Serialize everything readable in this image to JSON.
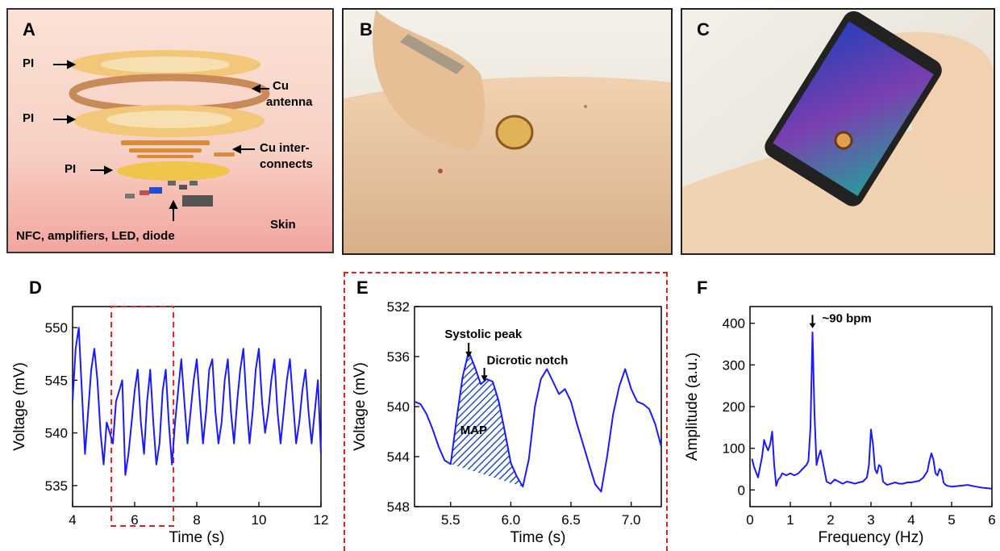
{
  "panels": {
    "a": {
      "letter": "A",
      "labels": {
        "pi1": "PI",
        "pi2": "PI",
        "pi3": "PI",
        "cu_antenna_1": "Cu",
        "cu_antenna_2": "antenna",
        "cu_inter_1": "Cu inter-",
        "cu_inter_2": "connects",
        "components": "NFC, amplifiers, LED, diode",
        "skin": "Skin"
      }
    },
    "b": {
      "letter": "B"
    },
    "c": {
      "letter": "C"
    },
    "d": {
      "letter": "D"
    },
    "e": {
      "letter": "E",
      "annotations": {
        "systolic": "Systolic peak",
        "dicrotic": "Dicrotic notch",
        "map": "MAP"
      }
    },
    "f": {
      "letter": "F",
      "annotations": {
        "peak": "~90 bpm"
      }
    }
  },
  "chart_data": [
    {
      "id": "D",
      "type": "line",
      "xlabel": "Time (s)",
      "ylabel": "Voltage (mV)",
      "xlim": [
        4,
        12
      ],
      "ylim": [
        533,
        552
      ],
      "xticks": [
        4,
        6,
        8,
        10,
        12
      ],
      "yticks": [
        535,
        540,
        545,
        550
      ],
      "color": "#1a1aff",
      "highlight_region": [
        5.25,
        7.25
      ],
      "x": [
        4.0,
        4.1,
        4.2,
        4.3,
        4.4,
        4.5,
        4.6,
        4.7,
        4.8,
        4.9,
        5.0,
        5.1,
        5.2,
        5.3,
        5.4,
        5.5,
        5.6,
        5.7,
        5.8,
        5.9,
        6.0,
        6.1,
        6.2,
        6.3,
        6.4,
        6.5,
        6.6,
        6.7,
        6.8,
        6.9,
        7.0,
        7.1,
        7.2,
        7.3,
        7.4,
        7.5,
        7.6,
        7.7,
        7.8,
        7.9,
        8.0,
        8.1,
        8.2,
        8.3,
        8.4,
        8.5,
        8.6,
        8.7,
        8.8,
        8.9,
        9.0,
        9.1,
        9.2,
        9.3,
        9.4,
        9.5,
        9.6,
        9.7,
        9.8,
        9.9,
        10.0,
        10.1,
        10.2,
        10.3,
        10.4,
        10.5,
        10.6,
        10.7,
        10.8,
        10.9,
        11.0,
        11.1,
        11.2,
        11.3,
        11.4,
        11.5,
        11.6,
        11.7,
        11.8,
        11.9,
        12.0
      ],
      "y": [
        543,
        548,
        550,
        544,
        538,
        542,
        546,
        548,
        545,
        540,
        537,
        541,
        540,
        539,
        543,
        544,
        545,
        536,
        538,
        541,
        544,
        546,
        541,
        538,
        543,
        546,
        541,
        537,
        539,
        544,
        546,
        541,
        537,
        541,
        544,
        547,
        543,
        539,
        542,
        545,
        547,
        543,
        539,
        542,
        546,
        547,
        542,
        539,
        541,
        545,
        547,
        542,
        539,
        543,
        546,
        548,
        543,
        539,
        542,
        546,
        548,
        543,
        540,
        542,
        545,
        547,
        542,
        539,
        542,
        545,
        547,
        543,
        539,
        541,
        544,
        546,
        542,
        539,
        542,
        545,
        538
      ]
    },
    {
      "id": "E",
      "type": "line",
      "xlabel": "Time (s)",
      "ylabel": "Voltage (mV)",
      "xlim": [
        5.2,
        7.25
      ],
      "ylim": [
        548,
        532
      ],
      "xticks": [
        5.5,
        6.0,
        6.5,
        7.0
      ],
      "yticks": [
        532,
        536,
        540,
        544,
        548
      ],
      "color": "#1a1aff",
      "map_region": [
        5.5,
        6.12
      ],
      "x": [
        5.2,
        5.25,
        5.3,
        5.35,
        5.4,
        5.45,
        5.5,
        5.55,
        5.6,
        5.65,
        5.7,
        5.75,
        5.8,
        5.85,
        5.9,
        5.95,
        6.0,
        6.05,
        6.1,
        6.15,
        6.2,
        6.25,
        6.3,
        6.35,
        6.4,
        6.45,
        6.5,
        6.55,
        6.6,
        6.65,
        6.7,
        6.75,
        6.8,
        6.85,
        6.9,
        6.95,
        7.0,
        7.05,
        7.1,
        7.15,
        7.2,
        7.25
      ],
      "y": [
        539.6,
        539.8,
        540.6,
        541.8,
        543.2,
        544.3,
        544.6,
        541.0,
        537.6,
        535.6,
        536.8,
        538.2,
        537.8,
        538.0,
        539.6,
        542.0,
        544.5,
        545.6,
        546.4,
        544.2,
        540.0,
        537.8,
        537.0,
        538.0,
        539.0,
        538.6,
        539.6,
        541.4,
        543.0,
        544.6,
        546.2,
        546.8,
        544.0,
        540.6,
        538.4,
        537.0,
        538.6,
        539.6,
        539.8,
        540.2,
        541.4,
        543.2
      ]
    },
    {
      "id": "F",
      "type": "line",
      "xlabel": "Frequency (Hz)",
      "ylabel": "Amplitude (a.u.)",
      "xlim": [
        0,
        6
      ],
      "ylim": [
        -40,
        440
      ],
      "xticks": [
        0,
        1,
        2,
        3,
        4,
        5,
        6
      ],
      "yticks": [
        0,
        100,
        200,
        300,
        400
      ],
      "color": "#1a1aff",
      "x": [
        0.05,
        0.1,
        0.2,
        0.3,
        0.35,
        0.4,
        0.45,
        0.5,
        0.55,
        0.6,
        0.65,
        0.7,
        0.75,
        0.8,
        0.9,
        1.0,
        1.1,
        1.2,
        1.3,
        1.4,
        1.45,
        1.5,
        1.55,
        1.6,
        1.65,
        1.7,
        1.75,
        1.8,
        1.85,
        1.9,
        2.0,
        2.1,
        2.2,
        2.3,
        2.4,
        2.5,
        2.6,
        2.7,
        2.8,
        2.9,
        2.95,
        3.0,
        3.05,
        3.1,
        3.15,
        3.2,
        3.25,
        3.3,
        3.4,
        3.5,
        3.6,
        3.7,
        3.8,
        3.9,
        4.0,
        4.1,
        4.2,
        4.3,
        4.4,
        4.45,
        4.5,
        4.55,
        4.6,
        4.65,
        4.7,
        4.75,
        4.8,
        4.85,
        4.9,
        5.0,
        5.2,
        5.4,
        5.6,
        5.8,
        6.0
      ],
      "y": [
        75,
        55,
        30,
        80,
        120,
        105,
        95,
        110,
        140,
        60,
        10,
        25,
        30,
        40,
        35,
        40,
        35,
        40,
        50,
        60,
        70,
        150,
        378,
        180,
        60,
        80,
        95,
        70,
        45,
        20,
        15,
        25,
        20,
        15,
        20,
        18,
        15,
        18,
        20,
        30,
        60,
        145,
        110,
        50,
        40,
        60,
        55,
        20,
        12,
        15,
        18,
        15,
        15,
        18,
        18,
        20,
        22,
        30,
        45,
        70,
        88,
        72,
        40,
        35,
        50,
        45,
        18,
        12,
        10,
        8,
        10,
        12,
        8,
        5,
        3
      ]
    }
  ]
}
